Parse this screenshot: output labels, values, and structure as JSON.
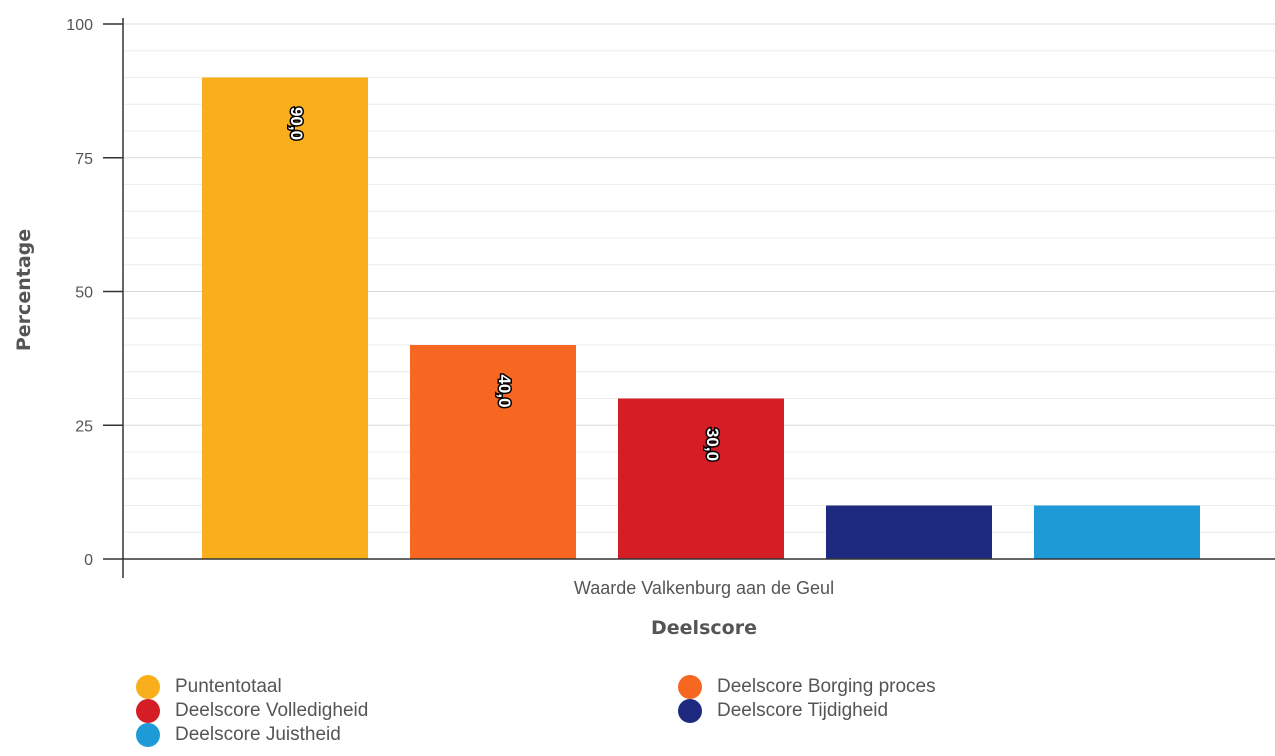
{
  "chart_data": {
    "type": "bar",
    "title": "",
    "xlabel": "Deelscore",
    "ylabel": "Percentage",
    "category": "Waarde Valkenburg aan de Geul",
    "ylim": [
      0,
      100
    ],
    "yticks": [
      "0",
      "25",
      "50",
      "75",
      "100"
    ],
    "grid": true,
    "legend_position": "bottom",
    "series": [
      {
        "name": "Puntentotaal",
        "value": 90,
        "label": "90,0",
        "color": "#f9ae1b"
      },
      {
        "name": "Deelscore Borging proces",
        "value": 40,
        "label": "40,0",
        "color": "#f76722"
      },
      {
        "name": "Deelscore Volledigheid",
        "value": 30,
        "label": "30,0",
        "color": "#d41d24"
      },
      {
        "name": "Deelscore Tijdigheid",
        "value": 10,
        "label": "",
        "color": "#1e2a80"
      },
      {
        "name": "Deelscore Juistheid",
        "value": 10,
        "label": "",
        "color": "#1e9ad6"
      }
    ]
  }
}
